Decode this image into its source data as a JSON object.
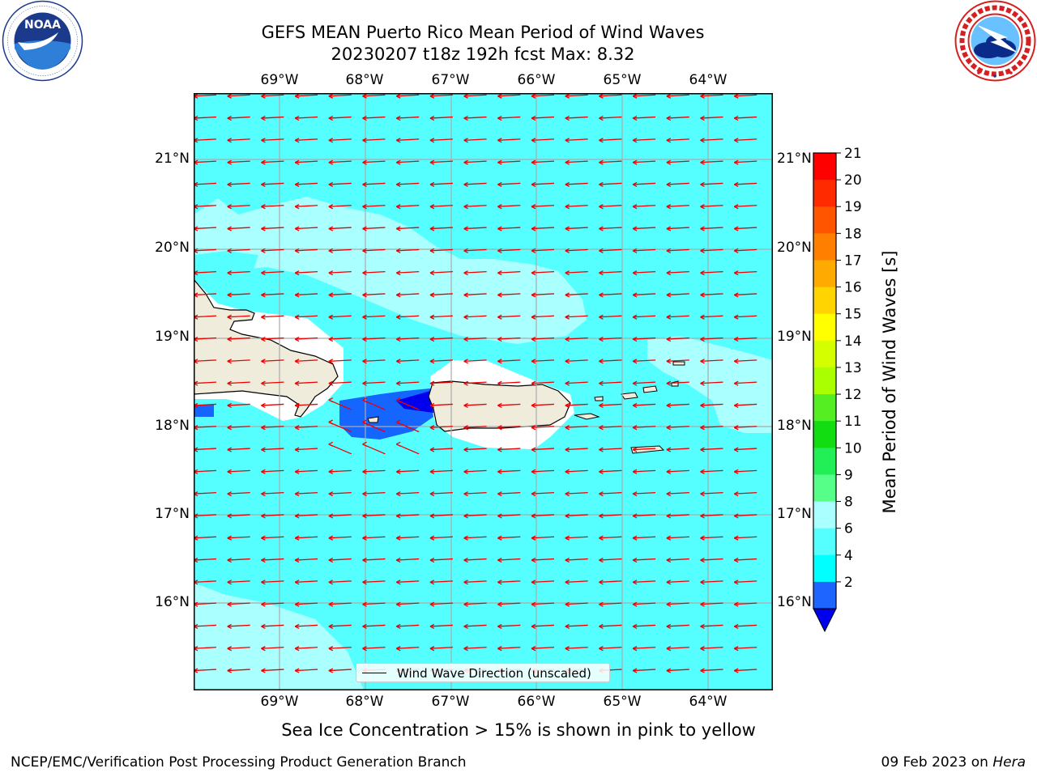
{
  "header": {
    "title_line1": "GEFS MEAN Puerto Rico Mean Period of Wind Waves",
    "title_line2": "20230207 t18z 192h fcst   Max: 8.32"
  },
  "logos": {
    "left": {
      "icon": "noaa-logo-icon",
      "text": "NOAA",
      "ring_text": "NATIONAL OCEANIC AND ATMOSPHERIC ADMINISTRATION · U.S. DEPARTMENT OF COMMERCE"
    },
    "right": {
      "icon": "nws-logo-icon",
      "ring_text": "NATIONAL WEATHER SERVICE"
    }
  },
  "map": {
    "lon_labels": [
      "69°W",
      "68°W",
      "67°W",
      "66°W",
      "65°W",
      "64°W"
    ],
    "lat_labels": [
      "21°N",
      "20°N",
      "19°N",
      "18°N",
      "17°N",
      "16°N"
    ],
    "ocean_color": "#55ffff",
    "light_band_color": "#aaffff",
    "deep_color": "#1565ff",
    "land_color": "#efecdc",
    "arrow_color": "#ee0000",
    "grid": true
  },
  "legend": {
    "label": "Wind Wave Direction (unscaled)"
  },
  "colorbar": {
    "label": "Mean Period of Wind Waves [s]",
    "ticks": [
      "21",
      "20",
      "19",
      "18",
      "17",
      "16",
      "15",
      "14",
      "13",
      "12",
      "11",
      "10",
      "9",
      "8",
      "6",
      "4",
      "2"
    ],
    "colors": [
      "#ff0000",
      "#ff2a00",
      "#ff5500",
      "#ff7f00",
      "#ffaa00",
      "#ffd400",
      "#ffff00",
      "#d4ff00",
      "#aaff00",
      "#55ee22",
      "#11dd11",
      "#22ee55",
      "#55ff88",
      "#aaffff",
      "#55ffff",
      "#00ffff",
      "#1e64ff"
    ],
    "extend_color": "#0000ee"
  },
  "note": "Sea Ice Concentration > 15% is shown in pink to yellow",
  "footer": {
    "left": "NCEP/EMC/Verification Post Processing Product Generation Branch",
    "right_date": "09 Feb 2023 on ",
    "right_host": "Hera"
  }
}
